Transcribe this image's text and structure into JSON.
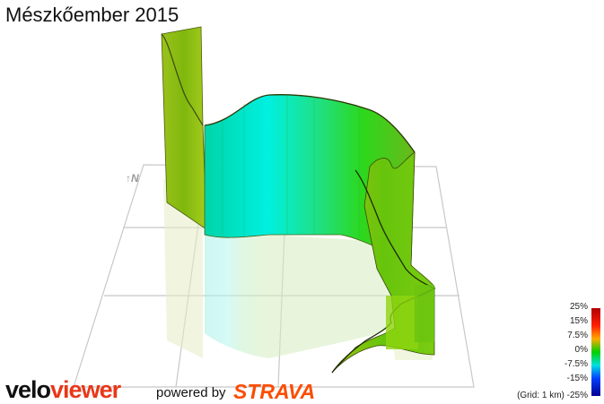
{
  "title": "Mészkőember 2015",
  "north_label": "↑N",
  "legend": {
    "ticks": [
      "25%",
      "15%",
      "7.5%",
      "0%",
      "-7.5%",
      "-15%",
      "-25%"
    ],
    "grid_note": "(Grid: 1 km)",
    "colors": [
      "#c00000",
      "#ff6a00",
      "#ffd800",
      "#00e000",
      "#00e8e8",
      "#0050ff",
      "#000090"
    ]
  },
  "branding": {
    "logo_velo": "velo",
    "logo_viewer": "viewer",
    "powered_by": "powered by",
    "strava": "STRAVA"
  },
  "chart_data": {
    "type": "area",
    "title": "Mészkőember 2015",
    "description_units": "3D elevation wall along route, colored by gradient",
    "colorscale": {
      "min": -25,
      "max": 25,
      "unit": "%"
    },
    "grid": true,
    "grid_spacing_km": 1,
    "legend_position": "bottom-right"
  }
}
